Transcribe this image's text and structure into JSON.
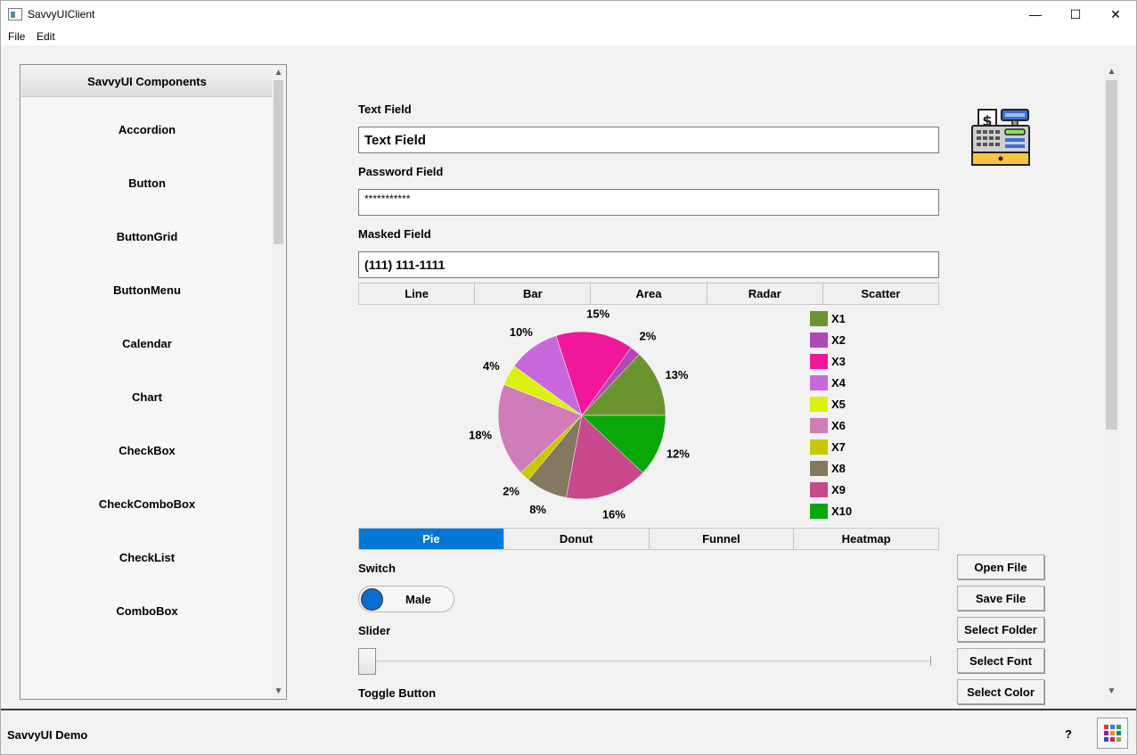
{
  "window": {
    "title": "SavvyUIClient",
    "controls": {
      "minimize": "—",
      "maximize": "☐",
      "close": "✕"
    }
  },
  "menu": {
    "items": [
      {
        "label": "File"
      },
      {
        "label": "Edit"
      }
    ]
  },
  "sidebar": {
    "header": "SavvyUI Components",
    "items": [
      {
        "label": "Accordion"
      },
      {
        "label": "Button"
      },
      {
        "label": "ButtonGrid"
      },
      {
        "label": "ButtonMenu"
      },
      {
        "label": "Calendar"
      },
      {
        "label": "Chart"
      },
      {
        "label": "CheckBox"
      },
      {
        "label": "CheckComboBox"
      },
      {
        "label": "CheckList"
      },
      {
        "label": "ComboBox"
      }
    ]
  },
  "form": {
    "text_field": {
      "label": "Text Field",
      "value": "Text Field"
    },
    "password_field": {
      "label": "Password Field",
      "value": "***********"
    },
    "masked_field": {
      "label": "Masked Field",
      "value": "(111) 111-1111"
    },
    "switch": {
      "label": "Switch",
      "value": "Male"
    },
    "slider": {
      "label": "Slider",
      "value": 0
    },
    "toggle_button": {
      "label": "Toggle Button"
    }
  },
  "chart_tabs_top": [
    {
      "label": "Line"
    },
    {
      "label": "Bar"
    },
    {
      "label": "Area"
    },
    {
      "label": "Radar"
    },
    {
      "label": "Scatter"
    }
  ],
  "chart_tabs_bottom": [
    {
      "label": "Pie",
      "active": true
    },
    {
      "label": "Donut",
      "active": false
    },
    {
      "label": "Funnel",
      "active": false
    },
    {
      "label": "Heatmap",
      "active": false
    }
  ],
  "chart_data": {
    "type": "pie",
    "categories": [
      "X1",
      "X2",
      "X3",
      "X4",
      "X5",
      "X6",
      "X7",
      "X8",
      "X9",
      "X10"
    ],
    "values": [
      13,
      2,
      15,
      10,
      4,
      18,
      2,
      8,
      16,
      12
    ],
    "data_labels": [
      "13%",
      "2%",
      "15%",
      "10%",
      "4%",
      "18%",
      "2%",
      "8%",
      "16%",
      "12%"
    ],
    "colors": [
      "#6a9430",
      "#b048b8",
      "#f0189a",
      "#c868dc",
      "#dcf010",
      "#d07cb8",
      "#c8c800",
      "#847860",
      "#c8488c",
      "#08a808"
    ],
    "legend_position": "right"
  },
  "side_buttons": [
    {
      "label": "Open File"
    },
    {
      "label": "Save File"
    },
    {
      "label": "Select Folder"
    },
    {
      "label": "Select Font"
    },
    {
      "label": "Select Color"
    }
  ],
  "status": {
    "text": "SavvyUI Demo",
    "help": "?"
  }
}
